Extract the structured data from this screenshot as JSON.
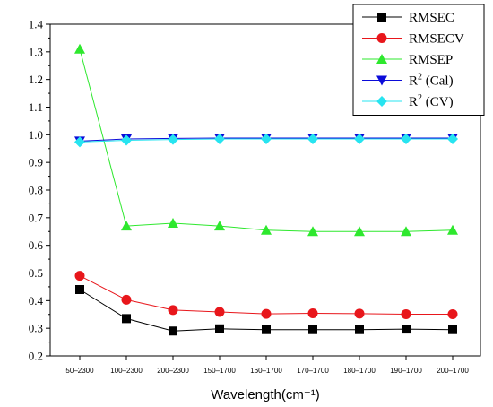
{
  "chart_data": {
    "type": "line",
    "title": "",
    "xlabel": "Wavelength(cm⁻¹)",
    "ylabel": "",
    "categories": [
      "50–2300",
      "100–2300",
      "200–2300",
      "150–1700",
      "160–1700",
      "170–1700",
      "180–1700",
      "190–1700",
      "200–1700"
    ],
    "ylim": [
      0.2,
      1.4
    ],
    "yticks": [
      "0.2",
      "0.3",
      "0.4",
      "0.5",
      "0.6",
      "0.7",
      "0.8",
      "0.9",
      "1.0",
      "1.1",
      "1.2",
      "1.3",
      "1.4"
    ],
    "grid": false,
    "legend_position": "top-right",
    "series": [
      {
        "name": "RMSEC",
        "marker": "square",
        "color": "#000000",
        "values": [
          0.44,
          0.335,
          0.29,
          0.298,
          0.295,
          0.295,
          0.295,
          0.297,
          0.295
        ]
      },
      {
        "name": "RMSECV",
        "marker": "circle",
        "color": "#e8161b",
        "values": [
          0.49,
          0.403,
          0.366,
          0.359,
          0.352,
          0.354,
          0.353,
          0.351,
          0.351
        ]
      },
      {
        "name": "RMSEP",
        "marker": "triangle-up",
        "color": "#2ee82e",
        "values": [
          1.31,
          0.67,
          0.68,
          0.67,
          0.655,
          0.65,
          0.65,
          0.65,
          0.655
        ]
      },
      {
        "name_main": "R",
        "name_sup": "2",
        "name_rest": " (Cal)",
        "marker": "triangle-down",
        "color": "#0b0bd9",
        "values": [
          0.977,
          0.985,
          0.987,
          0.988,
          0.988,
          0.988,
          0.988,
          0.988,
          0.988
        ]
      },
      {
        "name_main": "R",
        "name_sup": "2",
        "name_rest": " (CV)",
        "marker": "diamond",
        "color": "#27e4f0",
        "values": [
          0.974,
          0.98,
          0.983,
          0.985,
          0.985,
          0.985,
          0.985,
          0.985,
          0.985
        ]
      }
    ]
  }
}
